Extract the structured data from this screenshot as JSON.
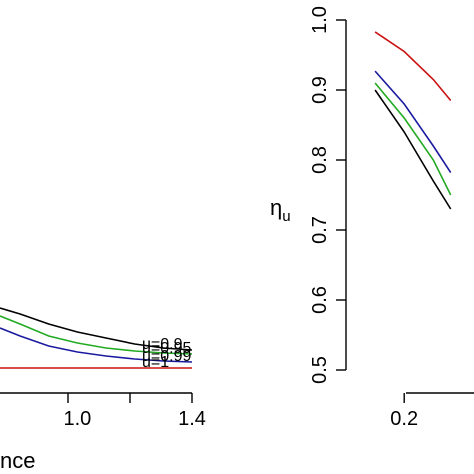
{
  "chart_data": [
    {
      "type": "line",
      "title": "",
      "xlabel": "nce",
      "ylabel": "",
      "x_ticks": [
        "1.0",
        "1.4"
      ],
      "x_tick_values": [
        1.0,
        1.4
      ],
      "xlim": [
        0.73,
        1.4
      ],
      "ylim": [
        0.0,
        1.0
      ],
      "grid": false,
      "legend": "inline labels at right end of curves",
      "series": [
        {
          "name": "u=0.9",
          "color": "#000000",
          "x": [
            0.73,
            0.8,
            0.9,
            1.0,
            1.1,
            1.2,
            1.3,
            1.4
          ],
          "y": [
            0.3,
            0.27,
            0.22,
            0.18,
            0.15,
            0.12,
            0.1,
            0.09
          ]
        },
        {
          "name": "u=0.95",
          "color": "#22aa22",
          "x": [
            0.73,
            0.8,
            0.9,
            1.0,
            1.1,
            1.2,
            1.3,
            1.4
          ],
          "y": [
            0.26,
            0.22,
            0.16,
            0.125,
            0.1,
            0.085,
            0.075,
            0.07
          ]
        },
        {
          "name": "u=0.99",
          "color": "#1a1aa0",
          "x": [
            0.73,
            0.8,
            0.9,
            1.0,
            1.1,
            1.2,
            1.3,
            1.4
          ],
          "y": [
            0.2,
            0.16,
            0.11,
            0.08,
            0.06,
            0.045,
            0.035,
            0.03
          ]
        },
        {
          "name": "u=1",
          "color": "#cc1111",
          "x": [
            0.73,
            1.4
          ],
          "y": [
            0.0,
            0.0
          ]
        }
      ]
    },
    {
      "type": "line",
      "title": "",
      "xlabel": "",
      "ylabel": "η",
      "ylabel_subscript": "u",
      "x_ticks": [
        "0.2"
      ],
      "x_tick_values": [
        0.2
      ],
      "y_ticks": [
        "0.5",
        "0.6",
        "0.7",
        "0.8",
        "0.9",
        "1.0"
      ],
      "y_tick_values": [
        0.5,
        0.6,
        0.7,
        0.8,
        0.9,
        1.0
      ],
      "xlim": [
        0.1,
        0.32
      ],
      "ylim": [
        0.5,
        1.0
      ],
      "grid": false,
      "series": [
        {
          "name": "u=0.9",
          "color": "#000000",
          "x": [
            0.15,
            0.2,
            0.25,
            0.28
          ],
          "y": [
            0.9,
            0.84,
            0.77,
            0.73
          ]
        },
        {
          "name": "u=0.95",
          "color": "#22aa22",
          "x": [
            0.15,
            0.2,
            0.25,
            0.28
          ],
          "y": [
            0.91,
            0.86,
            0.8,
            0.75
          ]
        },
        {
          "name": "u=0.99",
          "color": "#1a1aa0",
          "x": [
            0.15,
            0.2,
            0.25,
            0.28
          ],
          "y": [
            0.927,
            0.88,
            0.82,
            0.782
          ]
        },
        {
          "name": "u=1",
          "color": "#cc1111",
          "x": [
            0.15,
            0.2,
            0.25,
            0.28
          ],
          "y": [
            0.983,
            0.955,
            0.915,
            0.885
          ]
        }
      ]
    }
  ]
}
